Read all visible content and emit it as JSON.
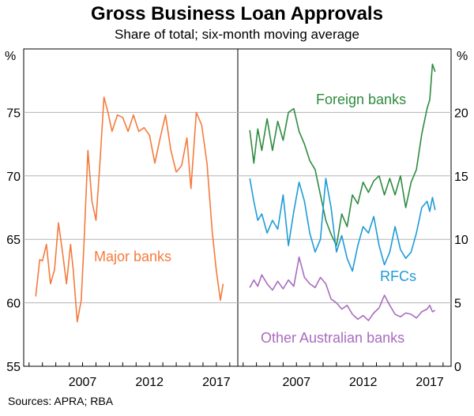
{
  "title": "Gross Business Loan Approvals",
  "subtitle": "Share of total; six-month moving average",
  "source": "Sources: APRA; RBA",
  "chart_data": [
    {
      "type": "line",
      "panel": "left",
      "y_unit": "%",
      "ylim": [
        55,
        80
      ],
      "yticks": [
        55,
        60,
        65,
        70,
        75
      ],
      "xlim": [
        2002.6,
        2018.6
      ],
      "xticks": [
        2007,
        2012,
        2017
      ],
      "grid": true,
      "series": [
        {
          "name": "Major banks",
          "color": "#F47B3D",
          "x": [
            2003.5,
            2003.8,
            2004.0,
            2004.3,
            2004.6,
            2004.9,
            2005.2,
            2005.5,
            2005.8,
            2006.1,
            2006.3,
            2006.6,
            2006.9,
            2007.1,
            2007.4,
            2007.7,
            2008.0,
            2008.3,
            2008.6,
            2008.9,
            2009.2,
            2009.6,
            2010.0,
            2010.4,
            2010.8,
            2011.2,
            2011.6,
            2012.0,
            2012.4,
            2012.8,
            2013.2,
            2013.6,
            2014.0,
            2014.4,
            2014.8,
            2015.1,
            2015.5,
            2015.9,
            2016.3,
            2016.7,
            2017.0,
            2017.3,
            2017.5
          ],
          "values": [
            60.5,
            63.4,
            63.3,
            64.6,
            61.5,
            62.6,
            66.3,
            64.0,
            61.5,
            64.6,
            62.6,
            58.5,
            60.2,
            64.5,
            72.0,
            68.0,
            66.5,
            71.0,
            76.2,
            75.0,
            73.5,
            74.8,
            74.6,
            73.5,
            74.8,
            73.5,
            73.8,
            73.2,
            71.0,
            73.0,
            74.8,
            72.0,
            70.3,
            70.8,
            73.0,
            69.0,
            75.0,
            74.0,
            71.0,
            65.5,
            62.5,
            60.2,
            61.5
          ]
        }
      ]
    },
    {
      "type": "line",
      "panel": "right",
      "y_unit": "%",
      "ylim": [
        0,
        25
      ],
      "yticks": [
        0,
        5,
        10,
        15,
        20
      ],
      "xlim": [
        2002.6,
        2018.6
      ],
      "xticks": [
        2007,
        2012,
        2017
      ],
      "grid": true,
      "series": [
        {
          "name": "Foreign banks",
          "color": "#2E8B3F",
          "x": [
            2003.5,
            2003.8,
            2004.1,
            2004.4,
            2004.8,
            2005.2,
            2005.6,
            2006.0,
            2006.4,
            2006.8,
            2007.2,
            2007.6,
            2008.0,
            2008.4,
            2008.8,
            2009.2,
            2009.6,
            2010.0,
            2010.4,
            2010.8,
            2011.2,
            2011.6,
            2012.0,
            2012.4,
            2012.8,
            2013.2,
            2013.6,
            2014.0,
            2014.4,
            2014.8,
            2015.2,
            2015.6,
            2016.0,
            2016.4,
            2016.8,
            2017.0,
            2017.2,
            2017.4
          ],
          "values": [
            18.6,
            16.0,
            18.7,
            17.0,
            19.5,
            17.0,
            19.3,
            17.8,
            20.0,
            20.3,
            18.5,
            17.5,
            16.2,
            15.5,
            13.5,
            11.5,
            10.4,
            9.5,
            12.0,
            11.0,
            13.5,
            12.8,
            14.5,
            13.7,
            14.6,
            15.0,
            13.5,
            14.8,
            13.5,
            15.0,
            12.5,
            14.5,
            15.5,
            18.3,
            20.3,
            21.0,
            23.8,
            23.2
          ]
        },
        {
          "name": "RFCs",
          "color": "#1E9BD7",
          "x": [
            2003.5,
            2003.8,
            2004.1,
            2004.4,
            2004.8,
            2005.2,
            2005.6,
            2006.0,
            2006.4,
            2006.8,
            2007.2,
            2007.6,
            2008.0,
            2008.4,
            2008.8,
            2009.2,
            2009.6,
            2010.0,
            2010.4,
            2010.8,
            2011.2,
            2011.6,
            2012.0,
            2012.4,
            2012.8,
            2013.2,
            2013.6,
            2014.0,
            2014.4,
            2014.8,
            2015.2,
            2015.6,
            2016.0,
            2016.4,
            2016.8,
            2017.0,
            2017.2,
            2017.4
          ],
          "values": [
            14.8,
            13.0,
            11.5,
            12.0,
            10.5,
            11.5,
            10.8,
            13.5,
            9.5,
            12.2,
            14.5,
            13.0,
            10.5,
            9.0,
            10.0,
            14.8,
            12.5,
            9.0,
            10.3,
            8.5,
            7.5,
            9.5,
            11.0,
            10.5,
            11.8,
            9.5,
            8.0,
            9.0,
            11.0,
            9.2,
            8.5,
            9.0,
            10.5,
            12.5,
            13.0,
            12.2,
            13.3,
            12.3
          ]
        },
        {
          "name": "Other Australian banks",
          "color": "#A86CBE",
          "x": [
            2003.5,
            2003.8,
            2004.1,
            2004.4,
            2004.8,
            2005.2,
            2005.6,
            2006.0,
            2006.4,
            2006.8,
            2007.2,
            2007.6,
            2008.0,
            2008.4,
            2008.8,
            2009.2,
            2009.6,
            2010.0,
            2010.4,
            2010.8,
            2011.2,
            2011.6,
            2012.0,
            2012.4,
            2012.8,
            2013.2,
            2013.6,
            2014.0,
            2014.4,
            2014.8,
            2015.2,
            2015.6,
            2016.0,
            2016.4,
            2016.8,
            2017.0,
            2017.2,
            2017.4
          ],
          "values": [
            6.2,
            6.8,
            6.3,
            7.2,
            6.5,
            6.0,
            6.7,
            6.1,
            6.8,
            6.3,
            8.6,
            7.0,
            6.5,
            6.2,
            7.0,
            6.5,
            5.3,
            5.0,
            4.5,
            4.8,
            4.1,
            3.7,
            4.0,
            3.6,
            4.2,
            4.6,
            5.6,
            4.8,
            4.1,
            3.9,
            4.2,
            4.1,
            3.8,
            4.3,
            4.5,
            4.8,
            4.3,
            4.4
          ]
        }
      ]
    }
  ],
  "labels": {
    "major": "Major banks",
    "foreign": "Foreign banks",
    "rfcs": "RFCs",
    "other": "Other Australian banks",
    "unit_left": "%",
    "unit_right": "%"
  }
}
